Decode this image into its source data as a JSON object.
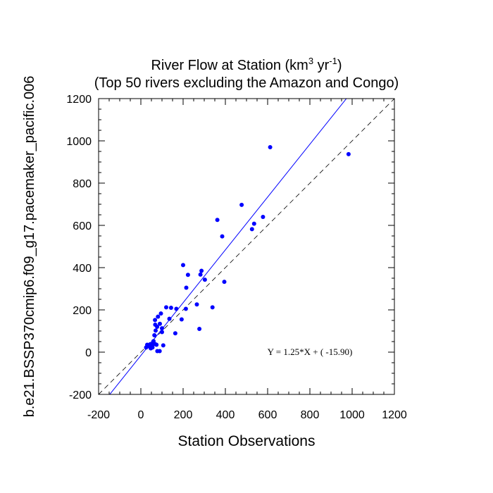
{
  "chart_data": {
    "type": "scatter",
    "title": "River Flow at Station (km",
    "title_sup1": "3",
    "title_mid": " yr",
    "title_sup2": "-1",
    "title_end": ")",
    "subtitle": "(Top 50 rivers excluding the Amazon and Congo)",
    "xlabel": "Station Observations",
    "ylabel": "b.e21.BSSP370cmip6.f09_g17.pacemaker_pacific.006",
    "xlim": [
      -200,
      1200
    ],
    "ylim": [
      -200,
      1200
    ],
    "xticks": [
      -200,
      0,
      200,
      400,
      600,
      800,
      1000,
      1200
    ],
    "yticks": [
      -200,
      0,
      200,
      400,
      600,
      800,
      1000,
      1200
    ],
    "xtick_labels": [
      "-200",
      "0",
      "200",
      "400",
      "600",
      "800",
      "1000",
      "1200"
    ],
    "ytick_labels": [
      "-200",
      "0",
      "200",
      "400",
      "600",
      "800",
      "1000",
      "1200"
    ],
    "regression": {
      "slope": 1.25,
      "intercept": -15.9
    },
    "equation_text": "Y =  1.25*X + (  -15.90)",
    "one_to_one_line": true,
    "colors": {
      "points": "#0000ff",
      "fit_line": "#0000ff",
      "ref_line": "#000000"
    },
    "points": [
      [
        983,
        937
      ],
      [
        612,
        970
      ],
      [
        477,
        697
      ],
      [
        578,
        640
      ],
      [
        536,
        608
      ],
      [
        526,
        582
      ],
      [
        362,
        626
      ],
      [
        385,
        548
      ],
      [
        200,
        412
      ],
      [
        287,
        385
      ],
      [
        282,
        367
      ],
      [
        223,
        366
      ],
      [
        303,
        343
      ],
      [
        395,
        333
      ],
      [
        215,
        305
      ],
      [
        339,
        212
      ],
      [
        265,
        226
      ],
      [
        213,
        205
      ],
      [
        143,
        210
      ],
      [
        168,
        205
      ],
      [
        120,
        212
      ],
      [
        95,
        183
      ],
      [
        81,
        168
      ],
      [
        67,
        152
      ],
      [
        90,
        134
      ],
      [
        68,
        130
      ],
      [
        77,
        120
      ],
      [
        100,
        113
      ],
      [
        70,
        102
      ],
      [
        100,
        95
      ],
      [
        135,
        158
      ],
      [
        193,
        155
      ],
      [
        163,
        89
      ],
      [
        277,
        110
      ],
      [
        106,
        32
      ],
      [
        89,
        5
      ],
      [
        78,
        5
      ],
      [
        74,
        35
      ],
      [
        60,
        52
      ],
      [
        58,
        40
      ],
      [
        53,
        28
      ],
      [
        47,
        18
      ],
      [
        45,
        38
      ],
      [
        38,
        28
      ],
      [
        30,
        35
      ],
      [
        25,
        22
      ],
      [
        68,
        38
      ],
      [
        64,
        80
      ],
      [
        58,
        48
      ],
      [
        55,
        22
      ]
    ]
  }
}
